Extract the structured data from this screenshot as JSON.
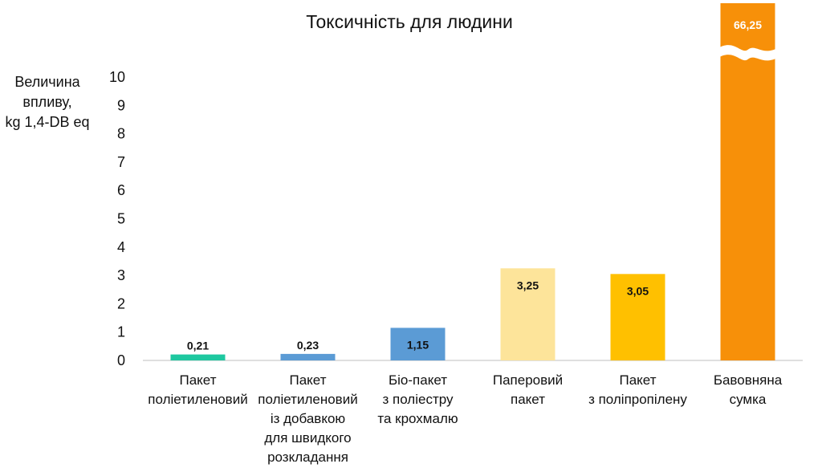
{
  "chart_data": {
    "type": "bar",
    "title": "Токсичність для людини",
    "ylabel_lines": [
      "Величина",
      "впливу,",
      "kg 1,4-DB eq"
    ],
    "ylim": [
      0,
      10
    ],
    "yticks": [
      "0",
      "1",
      "2",
      "3",
      "4",
      "5",
      "6",
      "7",
      "8",
      "9",
      "10"
    ],
    "axis_break": true,
    "grid": false,
    "categories": [
      [
        "Пакет",
        "поліетиленовий"
      ],
      [
        "Пакет",
        "поліетиленовий",
        "із добавкою",
        "для швидкого",
        "розкладання"
      ],
      [
        "Біо-пакет",
        "з поліестру",
        "та крохмалю"
      ],
      [
        "Паперовий",
        "пакет"
      ],
      [
        "Пакет",
        "з поліпропілену"
      ],
      [
        "Бавовняна",
        "сумка"
      ]
    ],
    "values": [
      0.21,
      0.23,
      1.15,
      3.25,
      3.05,
      66.25
    ],
    "value_labels": [
      "0,21",
      "0,23",
      "1,15",
      "3,25",
      "3,05",
      "66,25"
    ],
    "colors": [
      "#1ec8a0",
      "#5b9bd5",
      "#5b9bd5",
      "#fde49a",
      "#ffc000",
      "#f79009"
    ]
  }
}
